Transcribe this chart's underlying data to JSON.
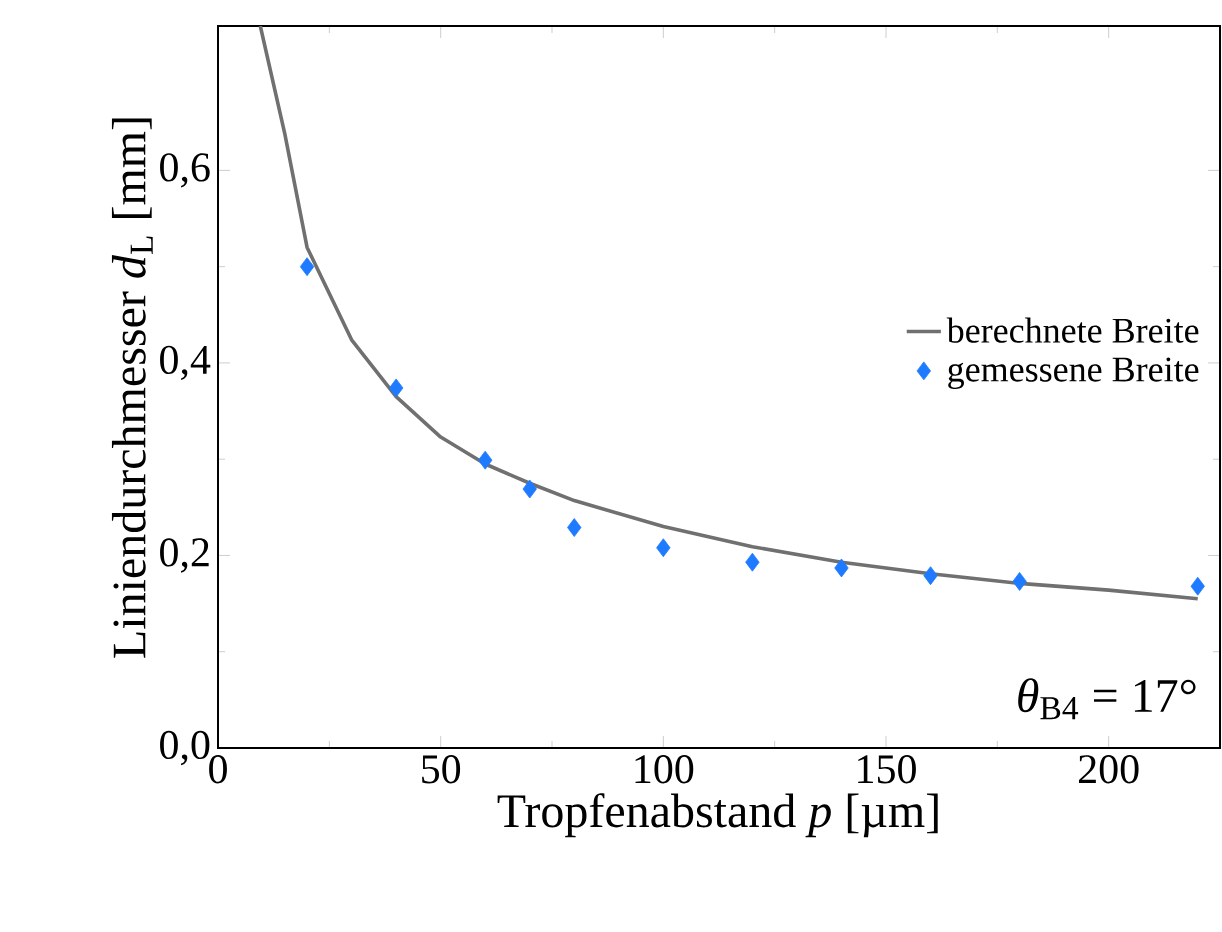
{
  "chart_data": {
    "type": "scatter",
    "xlabel": "Tropfenabstand *p* [µm]",
    "ylabel": "Liniendurchmesser *d*$_{L}$ [mm]",
    "xlim": [
      0,
      225
    ],
    "ylim": [
      0,
      0.75
    ],
    "xticks": [
      0,
      50,
      100,
      150,
      200
    ],
    "yticks": [
      {
        "value": 0,
        "label": "0,0"
      },
      {
        "value": 0.2,
        "label": "0,2"
      },
      {
        "value": 0.4,
        "label": "0,4"
      },
      {
        "value": 0.6,
        "label": "0,6"
      }
    ],
    "grid": false,
    "legend": "right",
    "annotations": [
      "*θ*$_{B4}$ = 17°"
    ],
    "series": [
      {
        "name": "gemessene Breite",
        "marker": "diamond",
        "color": "#1e7bff",
        "x": [
          20,
          40,
          60,
          70,
          80,
          100,
          120,
          140,
          160,
          180,
          220
        ],
        "values": [
          0.5,
          0.374,
          0.299,
          0.269,
          0.229,
          0.208,
          0.193,
          0.187,
          0.179,
          0.173,
          0.168
        ]
      },
      {
        "name": "berechnete Breite",
        "type": "line",
        "color": "#707070",
        "line_style": "solid",
        "x": [
          9.5,
          15,
          20,
          30,
          40,
          50,
          60,
          70,
          80,
          100,
          120,
          140,
          160,
          180,
          200,
          220
        ],
        "values": [
          0.75,
          0.638,
          0.52,
          0.424,
          0.365,
          0.323,
          0.295,
          0.275,
          0.257,
          0.23,
          0.209,
          0.193,
          0.181,
          0.171,
          0.164,
          0.155
        ]
      }
    ]
  }
}
